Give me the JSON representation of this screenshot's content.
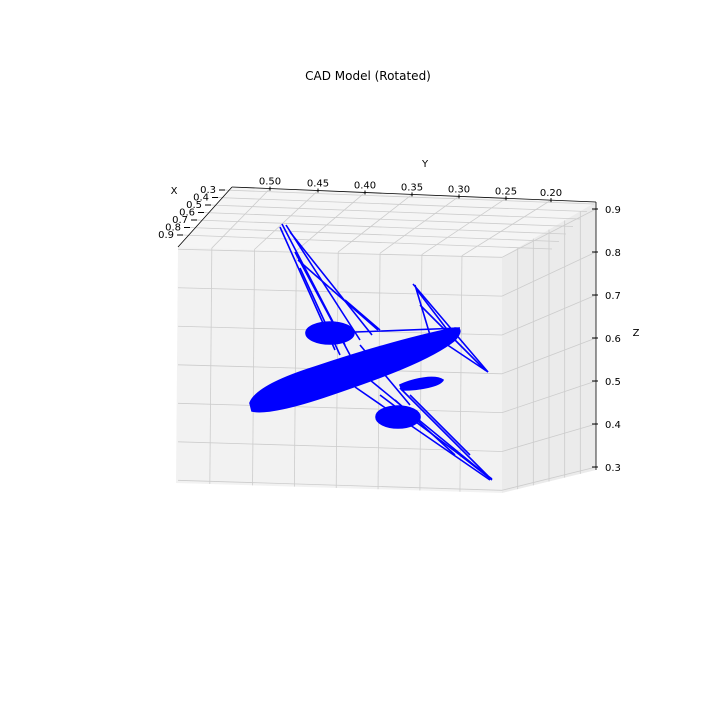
{
  "chart_data": {
    "type": "scatter",
    "title": "CAD Model (Rotated)",
    "xlabel": "X",
    "ylabel": "Y",
    "zlabel": "Z",
    "x_ticks": [
      "0.3",
      "0.4",
      "0.5",
      "0.6",
      "0.7",
      "0.8",
      "0.9"
    ],
    "y_ticks": [
      "0.50",
      "0.45",
      "0.40",
      "0.35",
      "0.30",
      "0.25",
      "0.20"
    ],
    "z_ticks": [
      "0.9",
      "0.8",
      "0.7",
      "0.6",
      "0.5",
      "0.4",
      "0.3"
    ],
    "grid": true,
    "projection": "3d",
    "model_color": "#0000ff"
  }
}
